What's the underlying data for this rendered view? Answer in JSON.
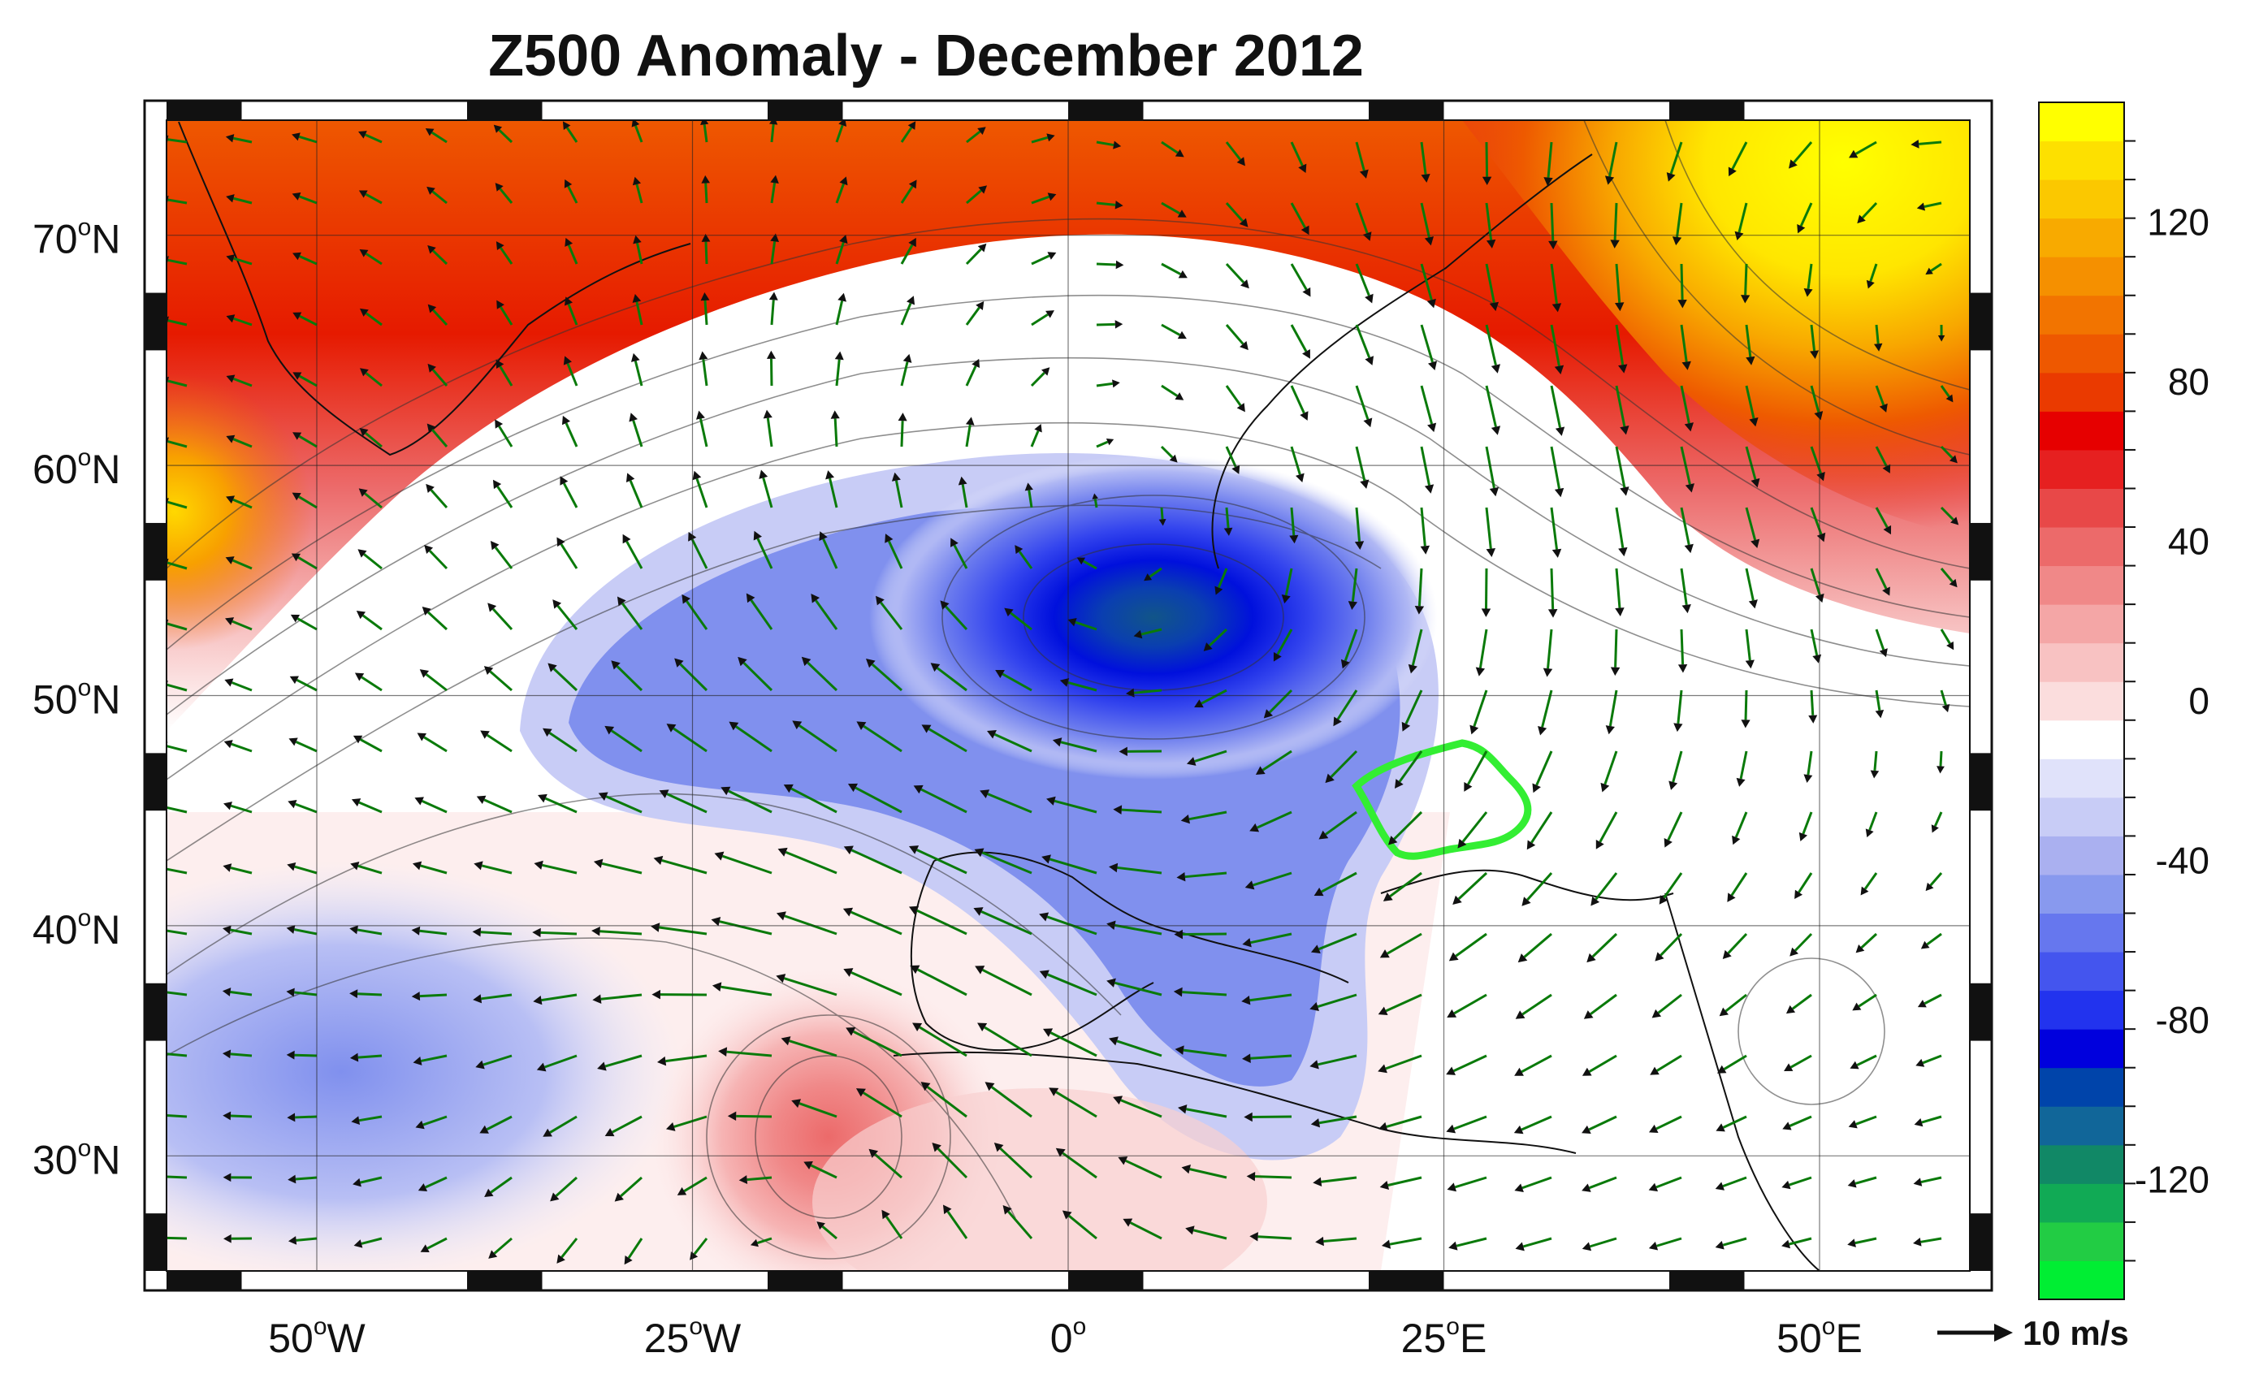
{
  "title": "Z500 Anomaly - December 2012",
  "map": {
    "lat_labels": [
      {
        "deg": "70",
        "hemi": "N",
        "value": 70
      },
      {
        "deg": "60",
        "hemi": "N",
        "value": 60
      },
      {
        "deg": "50",
        "hemi": "N",
        "value": 50
      },
      {
        "deg": "40",
        "hemi": "N",
        "value": 40
      },
      {
        "deg": "30",
        "hemi": "N",
        "value": 30
      }
    ],
    "lon_labels": [
      {
        "deg": "50",
        "hemi": "W",
        "value": -50
      },
      {
        "deg": "25",
        "hemi": "W",
        "value": -25
      },
      {
        "deg": "0",
        "hemi": "",
        "value": 0
      },
      {
        "deg": "25",
        "hemi": "E",
        "value": 25
      },
      {
        "deg": "50",
        "hemi": "E",
        "value": 50
      }
    ],
    "extent": {
      "lon_min": -60,
      "lon_max": 60,
      "lat_min": 25,
      "lat_max": 75
    },
    "highlight_region_color": "#33ee33",
    "vector_color": "#0a7a0a"
  },
  "colorbar": {
    "tick_labels": [
      "120",
      "80",
      "40",
      "0",
      "-40",
      "-80",
      "-120"
    ],
    "tick_values": [
      120,
      80,
      40,
      0,
      -40,
      -80,
      -120
    ],
    "range": [
      -150,
      150
    ],
    "colors": [
      "#00ee33",
      "#22cc44",
      "#11aa55",
      "#118866",
      "#116699",
      "#0044aa",
      "#0000dd",
      "#2233ee",
      "#4455ee",
      "#6677ee",
      "#8899ee",
      "#aab0f0",
      "#c8ccf6",
      "#e0e2fa",
      "#ffffff",
      "#fbdddd",
      "#f8c2c2",
      "#f4a6a6",
      "#f08888",
      "#ec6a6a",
      "#e84848",
      "#e62020",
      "#e60000",
      "#ea3a00",
      "#ee5800",
      "#f27400",
      "#f59000",
      "#f8aa00",
      "#fbc800",
      "#fde000",
      "#ffff00"
    ]
  },
  "scale": {
    "label": "10 m/s"
  }
}
